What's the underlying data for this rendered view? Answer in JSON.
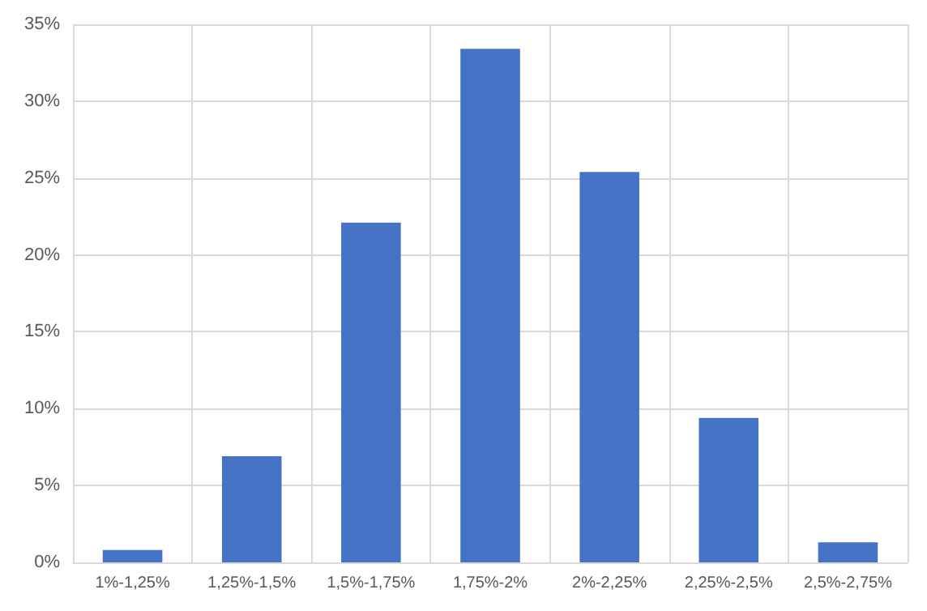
{
  "chart_data": {
    "type": "bar",
    "categories": [
      "1%-1,25%",
      "1,25%-1,5%",
      "1,5%-1,75%",
      "1,75%-2%",
      "2%-2,25%",
      "2,25%-2,5%",
      "2,5%-2,75%"
    ],
    "values": [
      0.8,
      6.9,
      22.1,
      33.4,
      25.4,
      9.4,
      1.3
    ],
    "color": "#4472c4",
    "ylim": [
      0,
      35
    ],
    "yticks": [
      {
        "value": 0,
        "label": "0%"
      },
      {
        "value": 5,
        "label": "5%"
      },
      {
        "value": 10,
        "label": "10%"
      },
      {
        "value": 15,
        "label": "15%"
      },
      {
        "value": 20,
        "label": "20%"
      },
      {
        "value": 25,
        "label": "25%"
      },
      {
        "value": 30,
        "label": "30%"
      },
      {
        "value": 35,
        "label": "35%"
      }
    ],
    "grid": true
  }
}
